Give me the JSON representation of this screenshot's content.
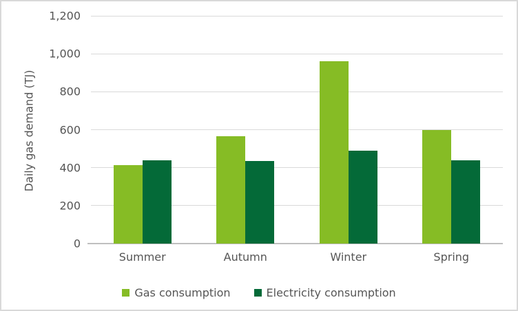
{
  "chart_data": {
    "type": "bar",
    "title": "",
    "xlabel": "",
    "ylabel": "Daily gas demand (TJ)",
    "categories": [
      "Summer",
      "Autumn",
      "Winter",
      "Spring"
    ],
    "series": [
      {
        "name": "Gas consumption",
        "color": "#86BC25",
        "values": [
          415,
          565,
          960,
          600
        ]
      },
      {
        "name": "Electricity consumption",
        "color": "#046A38",
        "values": [
          440,
          435,
          490,
          440
        ]
      }
    ],
    "ylim": [
      0,
      1200
    ],
    "ytick_values": [
      0,
      200,
      400,
      600,
      800,
      1000,
      1200
    ],
    "ytick_labels": [
      "0",
      "200",
      "400",
      "600",
      "800",
      "1,000",
      "1,200"
    ],
    "grid": true,
    "legend_position": "bottom",
    "colors": {
      "gridline": "#D9D9D9",
      "axis_line": "#BFBFBF",
      "text": "#555555",
      "frame_border": "#D9D9D9",
      "background": "#FFFFFF"
    }
  }
}
